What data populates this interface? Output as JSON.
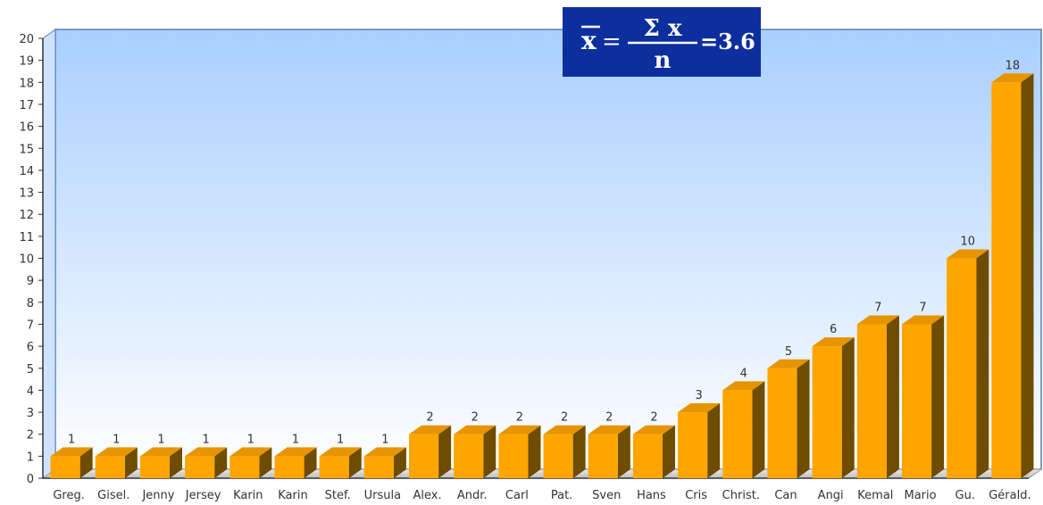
{
  "chart_data": {
    "type": "bar",
    "categories": [
      "Greg.",
      "Gisel.",
      "Jenny",
      "Jersey",
      "Karin",
      "Karin",
      "Stef.",
      "Ursula",
      "Alex.",
      "Andr.",
      "Carl",
      "Pat.",
      "Sven",
      "Hans",
      "Cris",
      "Christ.",
      "Can",
      "Angi",
      "Kemal",
      "Mario",
      "Gu.",
      "Gérald."
    ],
    "values": [
      1,
      1,
      1,
      1,
      1,
      1,
      1,
      1,
      2,
      2,
      2,
      2,
      2,
      2,
      3,
      4,
      5,
      6,
      7,
      7,
      10,
      18
    ],
    "data_labels": [
      "1",
      "1",
      "1",
      "1",
      "1",
      "1",
      "1",
      "1",
      "2",
      "2",
      "2",
      "2",
      "2",
      "2",
      "3",
      "4",
      "5",
      "6",
      "7",
      "7",
      "10",
      "18"
    ],
    "title": "",
    "xlabel": "",
    "ylabel": "",
    "ylim": [
      0,
      20
    ],
    "yticks": [
      "0",
      "1",
      "2",
      "3",
      "4",
      "5",
      "6",
      "7",
      "8",
      "9",
      "10",
      "11",
      "12",
      "13",
      "14",
      "15",
      "16",
      "17",
      "18",
      "19",
      "20"
    ],
    "grid": false,
    "legend": "none",
    "colors": {
      "bar_front": "#FFA500",
      "bar_top": "#E69400",
      "bar_side": "#6E4C00",
      "background_top": "#A9CFFF",
      "background_bottom": "#FFFFFF",
      "formula_box": "#0D2F9E",
      "text": "#333333"
    }
  },
  "formula": {
    "lhs": "x",
    "equals": "=",
    "numerator": "Σ x",
    "denominator": "n",
    "result": "=3.6"
  }
}
